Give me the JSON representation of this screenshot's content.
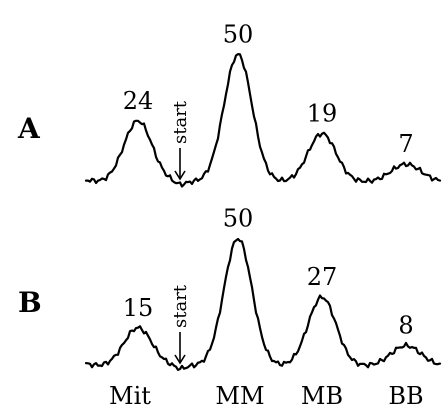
{
  "chart_data": {
    "type": "line",
    "categories": [
      "Mit",
      "MM",
      "MB",
      "BB"
    ],
    "start_label": "start",
    "panels": [
      {
        "label": "A",
        "peaks": [
          {
            "category": "Mit",
            "value": 24
          },
          {
            "category": "MM",
            "value": 50
          },
          {
            "category": "MB",
            "value": 19
          },
          {
            "category": "BB",
            "value": 7
          }
        ]
      },
      {
        "label": "B",
        "peaks": [
          {
            "category": "Mit",
            "value": 15
          },
          {
            "category": "MM",
            "value": 50
          },
          {
            "category": "MB",
            "value": 27
          },
          {
            "category": "BB",
            "value": 8
          }
        ]
      }
    ]
  }
}
